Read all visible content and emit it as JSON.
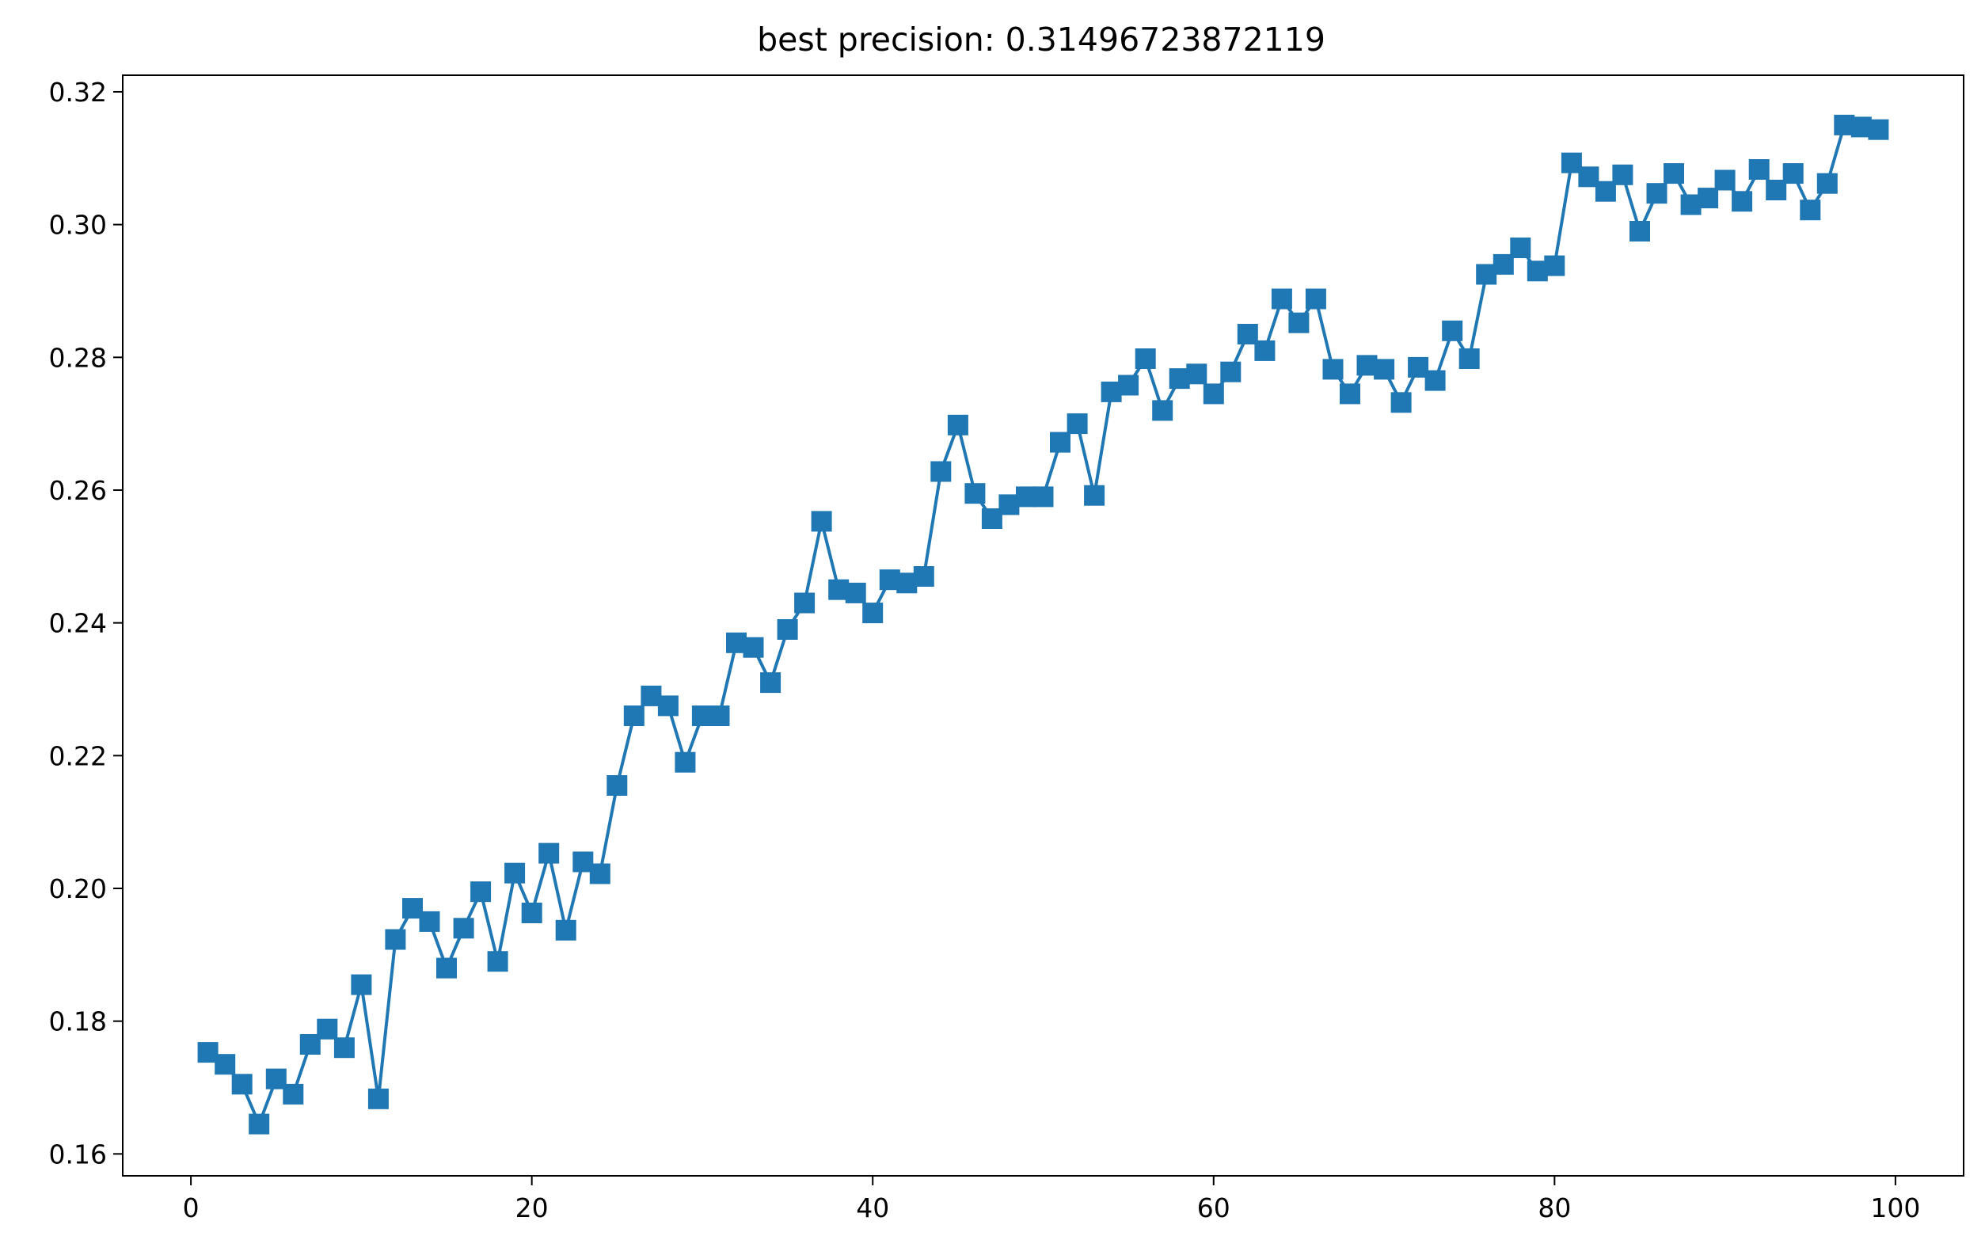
{
  "chart_data": {
    "type": "line",
    "title": "best precision: 0.31496723872119",
    "xlabel": "",
    "ylabel": "",
    "xlim": [
      -4,
      104
    ],
    "ylim": [
      0.1567,
      0.3225
    ],
    "xticks": [
      0,
      20,
      40,
      60,
      80,
      100
    ],
    "yticks": [
      0.16,
      0.18,
      0.2,
      0.22,
      0.24,
      0.26,
      0.28,
      0.3,
      0.32
    ],
    "xtick_labels": [
      "0",
      "20",
      "40",
      "60",
      "80",
      "100"
    ],
    "ytick_labels": [
      "0.16",
      "0.18",
      "0.20",
      "0.22",
      "0.24",
      "0.26",
      "0.28",
      "0.30",
      "0.32"
    ],
    "grid": false,
    "legend": false,
    "colors": {
      "series": "#1f77b4",
      "axes": "#000000",
      "background": "#ffffff"
    },
    "marker": "square",
    "series": [
      {
        "x": [
          1,
          2,
          3,
          4,
          5,
          6,
          7,
          8,
          9,
          10,
          11,
          12,
          13,
          14,
          15,
          16,
          17,
          18,
          19,
          20,
          21,
          22,
          23,
          24,
          25,
          26,
          27,
          28,
          29,
          30,
          31,
          32,
          33,
          34,
          35,
          36,
          37,
          38,
          39,
          40,
          41,
          42,
          43,
          44,
          45,
          46,
          47,
          48,
          49,
          50,
          51,
          52,
          53,
          54,
          55,
          56,
          57,
          58,
          59,
          60,
          61,
          62,
          63,
          64,
          65,
          66,
          67,
          68,
          69,
          70,
          71,
          72,
          73,
          74,
          75,
          76,
          77,
          78,
          79,
          80,
          81,
          82,
          83,
          84,
          85,
          86,
          87,
          88,
          89,
          90,
          91,
          92,
          93,
          94,
          95,
          96,
          97,
          98,
          99
        ],
        "values": [
          0.1753,
          0.1735,
          0.1705,
          0.1645,
          0.1713,
          0.169,
          0.1765,
          0.1788,
          0.176,
          0.1855,
          0.1683,
          0.1923,
          0.197,
          0.195,
          0.188,
          0.194,
          0.1995,
          0.189,
          0.2023,
          0.1963,
          0.2053,
          0.1937,
          0.204,
          0.2022,
          0.2155,
          0.226,
          0.229,
          0.2275,
          0.219,
          0.226,
          0.226,
          0.237,
          0.2363,
          0.231,
          0.239,
          0.243,
          0.2553,
          0.245,
          0.2445,
          0.2415,
          0.2465,
          0.246,
          0.247,
          0.2628,
          0.2698,
          0.2595,
          0.2557,
          0.2578,
          0.259,
          0.259,
          0.2672,
          0.27,
          0.2592,
          0.2748,
          0.2758,
          0.2798,
          0.272,
          0.2768,
          0.2775,
          0.2745,
          0.2778,
          0.2835,
          0.281,
          0.2888,
          0.2852,
          0.2888,
          0.2782,
          0.2745,
          0.2788,
          0.2782,
          0.2732,
          0.2785,
          0.2765,
          0.284,
          0.2798,
          0.2925,
          0.294,
          0.2965,
          0.293,
          0.2938,
          0.3093,
          0.3072,
          0.305,
          0.3075,
          0.299,
          0.3047,
          0.3077,
          0.303,
          0.304,
          0.3067,
          0.3035,
          0.3083,
          0.3052,
          0.3077,
          0.3022,
          0.3062,
          0.315,
          0.3147,
          0.3143
        ]
      }
    ]
  }
}
